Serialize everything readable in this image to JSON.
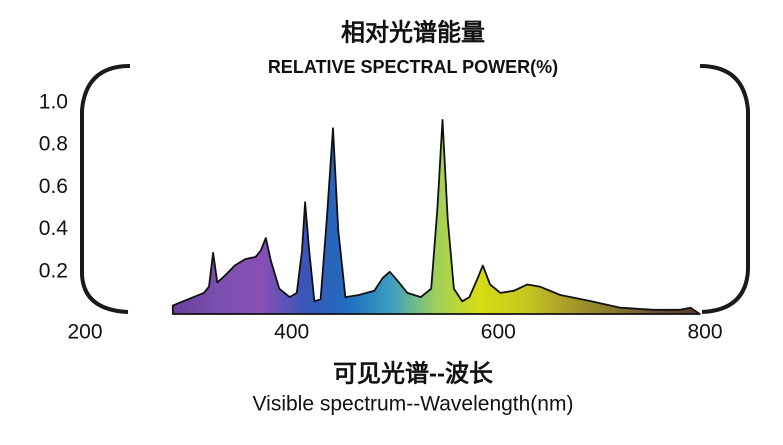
{
  "chart_data": {
    "type": "area",
    "title": "相对光谱能量",
    "subtitle": "RELATIVE SPECTRAL POWER(%)",
    "x_label": "可见光谱--波长",
    "x_label_sub": "Visible spectrum--Wavelength(nm)",
    "x": [
      285,
      300,
      315,
      320,
      324,
      328,
      335,
      345,
      355,
      365,
      370,
      375,
      380,
      388,
      398,
      405,
      410,
      413,
      417,
      422,
      428,
      434,
      440,
      445,
      452,
      465,
      480,
      488,
      495,
      502,
      512,
      525,
      535,
      541,
      546,
      551,
      557,
      565,
      572,
      580,
      585,
      592,
      602,
      615,
      628,
      640,
      660,
      690,
      718,
      750,
      776,
      786,
      795
    ],
    "values": [
      0.04,
      0.07,
      0.1,
      0.13,
      0.29,
      0.15,
      0.18,
      0.23,
      0.26,
      0.27,
      0.3,
      0.36,
      0.25,
      0.12,
      0.08,
      0.1,
      0.3,
      0.53,
      0.3,
      0.06,
      0.07,
      0.45,
      0.88,
      0.4,
      0.08,
      0.09,
      0.11,
      0.17,
      0.2,
      0.16,
      0.1,
      0.08,
      0.12,
      0.5,
      0.92,
      0.45,
      0.12,
      0.06,
      0.08,
      0.17,
      0.23,
      0.14,
      0.1,
      0.11,
      0.14,
      0.13,
      0.09,
      0.06,
      0.03,
      0.02,
      0.02,
      0.03,
      0
    ],
    "fill_colors": [
      "#6a3f9a",
      "#7a4fb0",
      "#8a4fb5",
      "#3b55b8",
      "#1f6ec0",
      "#3fa0c0",
      "#9fd05a",
      "#d8dc12",
      "#c8c820",
      "#a89c28",
      "#8a7a2e",
      "#6e4e30",
      "#5a3a2a"
    ],
    "line_color": "#111111",
    "xlim": [
      200,
      800
    ],
    "xticks": [
      200,
      400,
      600,
      800
    ],
    "ylim": [
      0,
      1
    ],
    "yticks": [
      0.2,
      0.4,
      0.6,
      0.8,
      {
        "value": 1,
        "label": "1.0"
      }
    ]
  }
}
